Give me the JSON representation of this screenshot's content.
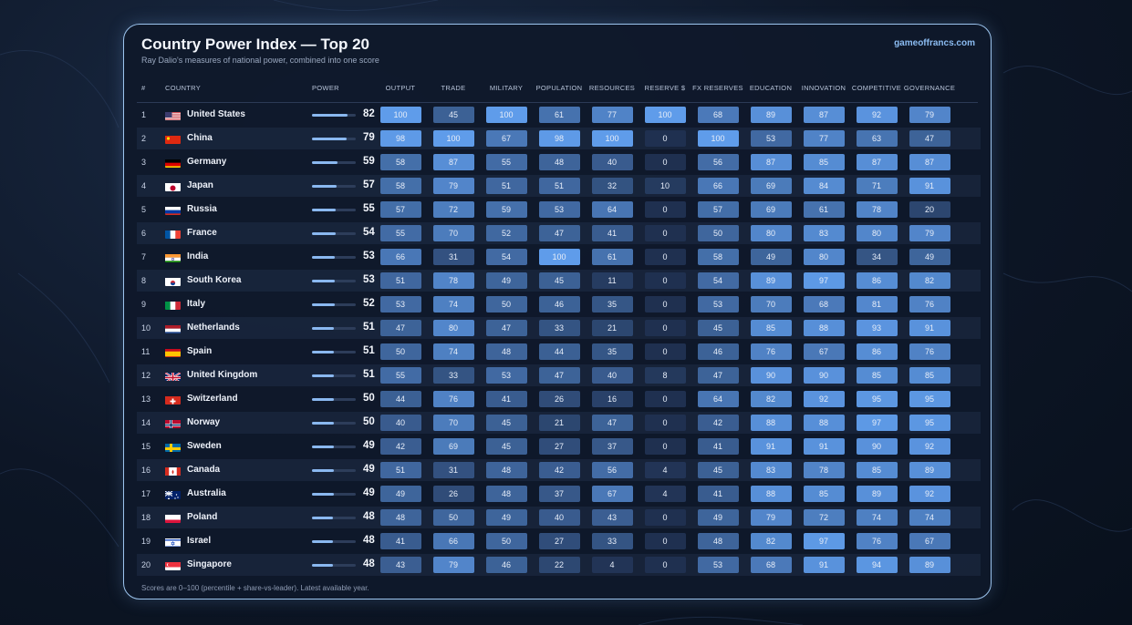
{
  "header": {
    "title": "Country Power Index — Top 20",
    "subtitle": "Ray Dalio's measures of national power, combined into one score",
    "brand": "gameoffrancs.com",
    "footer": "Scores are 0–100 (percentile + share-vs-leader). Latest available year."
  },
  "columns": {
    "rank": "#",
    "country": "COUNTRY",
    "power": "POWER",
    "metrics": [
      "OUTPUT",
      "TRADE",
      "MILITARY",
      "POPULATION",
      "RESOURCES",
      "RESERVE $",
      "FX RESERVES",
      "EDUCATION",
      "INNOVATION",
      "COMPETITIVE",
      "GOVERNANCE"
    ]
  },
  "colors": {
    "cell_low": "#1f3050",
    "cell_high": "#5f9cea",
    "power_bar": "#8ab8f0"
  },
  "chart_data": {
    "type": "table",
    "title": "Country Power Index — Top 20",
    "subtitle": "Ray Dalio's measures of national power, combined into one score",
    "value_range": [
      0,
      100
    ],
    "metrics": [
      "OUTPUT",
      "TRADE",
      "MILITARY",
      "POPULATION",
      "RESOURCES",
      "RESERVE $",
      "FX RESERVES",
      "EDUCATION",
      "INNOVATION",
      "COMPETITIVE",
      "GOVERNANCE"
    ],
    "rows": [
      {
        "rank": "1",
        "country": "United States",
        "flag": "us-flag-icon",
        "power": "82",
        "values": [
          "100",
          "45",
          "100",
          "61",
          "77",
          "100",
          "68",
          "89",
          "87",
          "92",
          "79"
        ]
      },
      {
        "rank": "2",
        "country": "China",
        "flag": "cn-flag-icon",
        "power": "79",
        "values": [
          "98",
          "100",
          "67",
          "98",
          "100",
          "0",
          "100",
          "53",
          "77",
          "63",
          "47"
        ]
      },
      {
        "rank": "3",
        "country": "Germany",
        "flag": "de-flag-icon",
        "power": "59",
        "values": [
          "58",
          "87",
          "55",
          "48",
          "40",
          "0",
          "56",
          "87",
          "85",
          "87",
          "87"
        ]
      },
      {
        "rank": "4",
        "country": "Japan",
        "flag": "jp-flag-icon",
        "power": "57",
        "values": [
          "58",
          "79",
          "51",
          "51",
          "32",
          "10",
          "66",
          "69",
          "84",
          "71",
          "91"
        ]
      },
      {
        "rank": "5",
        "country": "Russia",
        "flag": "ru-flag-icon",
        "power": "55",
        "values": [
          "57",
          "72",
          "59",
          "53",
          "64",
          "0",
          "57",
          "69",
          "61",
          "78",
          "20"
        ]
      },
      {
        "rank": "6",
        "country": "France",
        "flag": "fr-flag-icon",
        "power": "54",
        "values": [
          "55",
          "70",
          "52",
          "47",
          "41",
          "0",
          "50",
          "80",
          "83",
          "80",
          "79"
        ]
      },
      {
        "rank": "7",
        "country": "India",
        "flag": "in-flag-icon",
        "power": "53",
        "values": [
          "66",
          "31",
          "54",
          "100",
          "61",
          "0",
          "58",
          "49",
          "80",
          "34",
          "49"
        ]
      },
      {
        "rank": "8",
        "country": "South Korea",
        "flag": "kr-flag-icon",
        "power": "53",
        "values": [
          "51",
          "78",
          "49",
          "45",
          "11",
          "0",
          "54",
          "89",
          "97",
          "86",
          "82"
        ]
      },
      {
        "rank": "9",
        "country": "Italy",
        "flag": "it-flag-icon",
        "power": "52",
        "values": [
          "53",
          "74",
          "50",
          "46",
          "35",
          "0",
          "53",
          "70",
          "68",
          "81",
          "76"
        ]
      },
      {
        "rank": "10",
        "country": "Netherlands",
        "flag": "nl-flag-icon",
        "power": "51",
        "values": [
          "47",
          "80",
          "47",
          "33",
          "21",
          "0",
          "45",
          "85",
          "88",
          "93",
          "91"
        ]
      },
      {
        "rank": "11",
        "country": "Spain",
        "flag": "es-flag-icon",
        "power": "51",
        "values": [
          "50",
          "74",
          "48",
          "44",
          "35",
          "0",
          "46",
          "76",
          "67",
          "86",
          "76"
        ]
      },
      {
        "rank": "12",
        "country": "United Kingdom",
        "flag": "gb-flag-icon",
        "power": "51",
        "values": [
          "55",
          "33",
          "53",
          "47",
          "40",
          "8",
          "47",
          "90",
          "90",
          "85",
          "85"
        ]
      },
      {
        "rank": "13",
        "country": "Switzerland",
        "flag": "ch-flag-icon",
        "power": "50",
        "values": [
          "44",
          "76",
          "41",
          "26",
          "16",
          "0",
          "64",
          "82",
          "92",
          "95",
          "95"
        ]
      },
      {
        "rank": "14",
        "country": "Norway",
        "flag": "no-flag-icon",
        "power": "50",
        "values": [
          "40",
          "70",
          "45",
          "21",
          "47",
          "0",
          "42",
          "88",
          "88",
          "97",
          "95"
        ]
      },
      {
        "rank": "15",
        "country": "Sweden",
        "flag": "se-flag-icon",
        "power": "49",
        "values": [
          "42",
          "69",
          "45",
          "27",
          "37",
          "0",
          "41",
          "91",
          "91",
          "90",
          "92"
        ]
      },
      {
        "rank": "16",
        "country": "Canada",
        "flag": "ca-flag-icon",
        "power": "49",
        "values": [
          "51",
          "31",
          "48",
          "42",
          "56",
          "4",
          "45",
          "83",
          "78",
          "85",
          "89"
        ]
      },
      {
        "rank": "17",
        "country": "Australia",
        "flag": "au-flag-icon",
        "power": "49",
        "values": [
          "49",
          "26",
          "48",
          "37",
          "67",
          "4",
          "41",
          "88",
          "85",
          "89",
          "92"
        ]
      },
      {
        "rank": "18",
        "country": "Poland",
        "flag": "pl-flag-icon",
        "power": "48",
        "values": [
          "48",
          "50",
          "49",
          "40",
          "43",
          "0",
          "49",
          "79",
          "72",
          "74",
          "74"
        ]
      },
      {
        "rank": "19",
        "country": "Israel",
        "flag": "il-flag-icon",
        "power": "48",
        "values": [
          "41",
          "66",
          "50",
          "27",
          "33",
          "0",
          "48",
          "82",
          "97",
          "76",
          "67"
        ]
      },
      {
        "rank": "20",
        "country": "Singapore",
        "flag": "sg-flag-icon",
        "power": "48",
        "values": [
          "43",
          "79",
          "46",
          "22",
          "4",
          "0",
          "53",
          "68",
          "91",
          "94",
          "89"
        ]
      }
    ]
  }
}
